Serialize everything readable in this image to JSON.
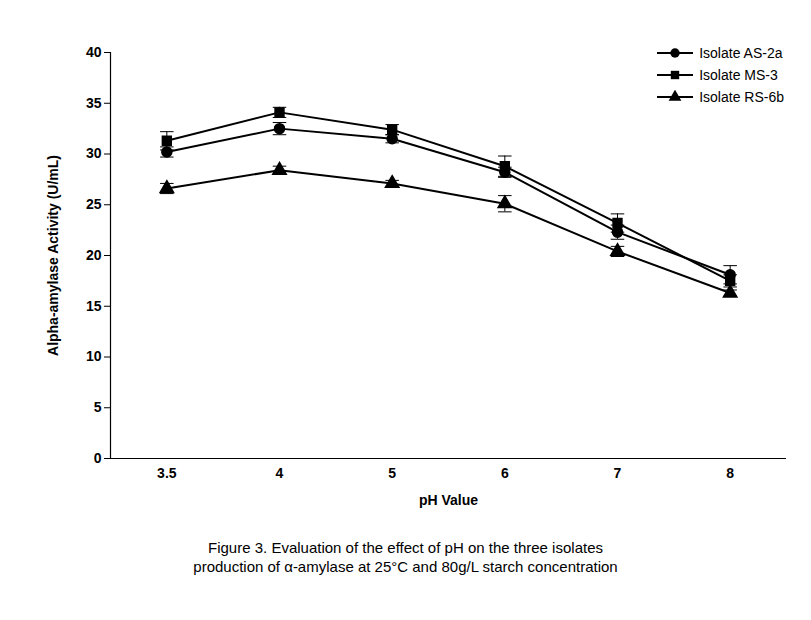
{
  "chart_data": {
    "type": "line",
    "title": "Figure 3. Evaluation of the effect of pH on the three isolates production of α-amylase at 25°C and 80g/L starch concentration",
    "x_label": "pH Value",
    "y_label": "Alpha-amylase Activity (U/mL)",
    "categories": [
      "3.5",
      "4",
      "5",
      "6",
      "7",
      "8"
    ],
    "series": [
      {
        "name": "Isolate AS-2a",
        "color": "#000000",
        "marker": "circle",
        "values": [
          30.2,
          32.5,
          31.5,
          28.2,
          22.3,
          18.1
        ],
        "errors": [
          0.5,
          0.6,
          0.4,
          0.5,
          0.7,
          0.9
        ]
      },
      {
        "name": "Isolate MS-3",
        "color": "#000000",
        "marker": "square",
        "values": [
          31.3,
          34.1,
          32.4,
          28.8,
          23.2,
          17.5
        ],
        "errors": [
          0.9,
          0.5,
          0.5,
          1.0,
          0.9,
          0.6
        ]
      },
      {
        "name": "Isolate RS-6b",
        "color": "#000000",
        "marker": "triangle",
        "values": [
          26.6,
          28.4,
          27.1,
          25.1,
          20.4,
          16.3
        ],
        "errors": [
          0.5,
          0.4,
          0.3,
          0.8,
          0.5,
          0.3
        ]
      }
    ],
    "ylim": [
      0,
      40
    ],
    "yticks": [
      0,
      5,
      10,
      15,
      20,
      25,
      30,
      35,
      40
    ],
    "grid": false,
    "legend": "top-right"
  }
}
